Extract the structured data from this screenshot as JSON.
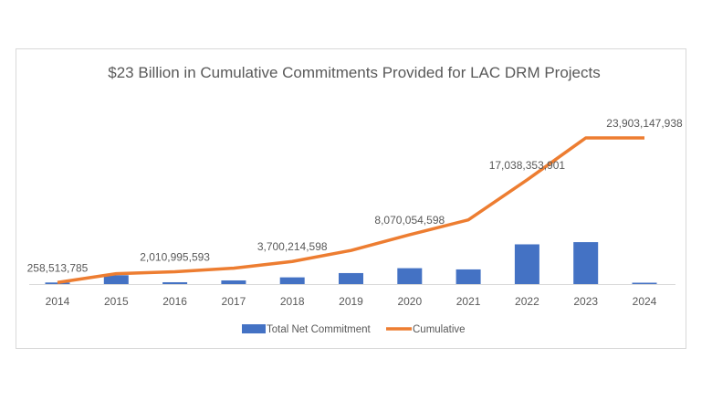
{
  "chart_data": {
    "type": "bar+line",
    "title": "$23 Billion in Cumulative Commitments Provided for LAC DRM Projects",
    "categories": [
      "2014",
      "2015",
      "2016",
      "2017",
      "2018",
      "2019",
      "2020",
      "2021",
      "2022",
      "2023",
      "2024"
    ],
    "series": [
      {
        "name": "Total Net Commitment",
        "type": "bar",
        "color": "#4472c4",
        "values": [
          258513785,
          1450000000,
          300000000,
          600000000,
          1100000000,
          1800000000,
          2600000000,
          2400000000,
          6500000000,
          6860000000,
          50000000
        ]
      },
      {
        "name": "Cumulative",
        "type": "line",
        "color": "#ed7d31",
        "values": [
          258513785,
          1700000000,
          2010995593,
          2600000000,
          3700214598,
          5500000000,
          8070054598,
          10500000000,
          17038353901,
          23903147938,
          23903147938
        ]
      }
    ],
    "data_labels": [
      {
        "category": "2014",
        "text": "258,513,785"
      },
      {
        "category": "2016",
        "text": "2,010,995,593"
      },
      {
        "category": "2018",
        "text": "3,700,214,598"
      },
      {
        "category": "2020",
        "text": "8,070,054,598"
      },
      {
        "category": "2022",
        "text": "17,038,353,901"
      },
      {
        "category": "2024",
        "text": "23,903,147,938"
      }
    ],
    "y_axis_visible": false,
    "grid": false,
    "legend_position": "bottom"
  }
}
